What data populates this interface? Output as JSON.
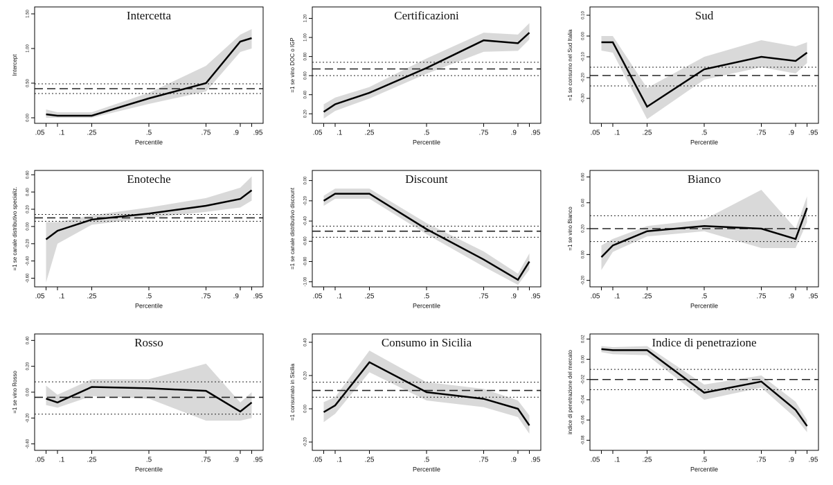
{
  "chart_data": [
    {
      "type": "line",
      "title": "Intercetta",
      "ylabel": "Intercept",
      "xlabel": "Percentile",
      "x": [
        0.05,
        0.1,
        0.25,
        0.5,
        0.75,
        0.9,
        0.95
      ],
      "xlim": [
        0,
        1
      ],
      "xticks": [
        {
          "value": 0.05,
          "label": ".05"
        },
        {
          "value": 0.1,
          "label": ".1"
        },
        {
          "value": 0.25,
          "label": ".25"
        },
        {
          "value": 0.5,
          "label": ".5"
        },
        {
          "value": 0.75,
          "label": ".75"
        },
        {
          "value": 0.9,
          "label": ".9"
        },
        {
          "value": 0.95,
          "label": ".95"
        }
      ],
      "ylim": [
        -0.08,
        1.6
      ],
      "yticks": [
        {
          "value": 0,
          "label": "0.00"
        },
        {
          "value": 0.5,
          "label": "0.50"
        },
        {
          "value": 1,
          "label": "1.00"
        },
        {
          "value": 1.5,
          "label": "1.50"
        }
      ],
      "values": [
        0.05,
        0.03,
        0.03,
        0.28,
        0.5,
        1.1,
        1.15
      ],
      "band_low": [
        0.0,
        0.0,
        0.0,
        0.2,
        0.38,
        0.95,
        1.0
      ],
      "band_high": [
        0.12,
        0.08,
        0.08,
        0.36,
        0.75,
        1.2,
        1.28
      ],
      "ols": 0.42,
      "ols_low": 0.35,
      "ols_high": 0.49
    },
    {
      "type": "line",
      "title": "Certificazioni",
      "ylabel": "=1 se vino DOC o IGP",
      "xlabel": "Percentile",
      "x": [
        0.05,
        0.1,
        0.25,
        0.5,
        0.75,
        0.9,
        0.95
      ],
      "xlim": [
        0,
        1
      ],
      "xticks": [
        {
          "value": 0.05,
          "label": ".05"
        },
        {
          "value": 0.1,
          "label": ".1"
        },
        {
          "value": 0.25,
          "label": ".25"
        },
        {
          "value": 0.5,
          "label": ".5"
        },
        {
          "value": 0.75,
          "label": ".75"
        },
        {
          "value": 0.9,
          "label": ".9"
        },
        {
          "value": 0.95,
          "label": ".95"
        }
      ],
      "ylim": [
        0.1,
        1.32
      ],
      "yticks": [
        {
          "value": 0.2,
          "label": "0.20"
        },
        {
          "value": 0.4,
          "label": "0.40"
        },
        {
          "value": 0.6,
          "label": "0.60"
        },
        {
          "value": 0.8,
          "label": "0.80"
        },
        {
          "value": 1,
          "label": "1.00"
        },
        {
          "value": 1.2,
          "label": "1.20"
        }
      ],
      "values": [
        0.22,
        0.3,
        0.42,
        0.68,
        0.97,
        0.94,
        1.05
      ],
      "band_low": [
        0.15,
        0.23,
        0.36,
        0.62,
        0.85,
        0.86,
        0.98
      ],
      "band_high": [
        0.3,
        0.37,
        0.48,
        0.78,
        1.05,
        1.03,
        1.15
      ],
      "ols": 0.67,
      "ols_low": 0.6,
      "ols_high": 0.74
    },
    {
      "type": "line",
      "title": "Sud",
      "ylabel": "=1 se consumo nel Sud Italia",
      "xlabel": "Percentile",
      "x": [
        0.05,
        0.1,
        0.25,
        0.5,
        0.75,
        0.9,
        0.95
      ],
      "xlim": [
        0,
        1
      ],
      "xticks": [
        {
          "value": 0.05,
          "label": ".05"
        },
        {
          "value": 0.1,
          "label": ".1"
        },
        {
          "value": 0.25,
          "label": ".25"
        },
        {
          "value": 0.5,
          "label": ".5"
        },
        {
          "value": 0.75,
          "label": ".75"
        },
        {
          "value": 0.9,
          "label": ".9"
        },
        {
          "value": 0.95,
          "label": ".95"
        }
      ],
      "ylim": [
        -0.42,
        0.14
      ],
      "yticks": [
        {
          "value": 0.1,
          "label": "0.10"
        },
        {
          "value": 0,
          "label": "0.00"
        },
        {
          "value": -0.1,
          "label": "-0.10"
        },
        {
          "value": -0.2,
          "label": "-0.20"
        },
        {
          "value": -0.3,
          "label": "-0.30"
        }
      ],
      "values": [
        -0.03,
        -0.03,
        -0.34,
        -0.16,
        -0.1,
        -0.12,
        -0.08
      ],
      "band_low": [
        -0.07,
        -0.08,
        -0.4,
        -0.21,
        -0.15,
        -0.18,
        -0.13
      ],
      "band_high": [
        0.0,
        0.0,
        -0.25,
        -0.1,
        -0.02,
        -0.05,
        -0.03
      ],
      "ols": -0.19,
      "ols_low": -0.24,
      "ols_high": -0.15
    },
    {
      "type": "line",
      "title": "Enoteche",
      "ylabel": "=1 se canale distributivo specializ.",
      "xlabel": "Percentile",
      "x": [
        0.05,
        0.1,
        0.25,
        0.5,
        0.75,
        0.9,
        0.95
      ],
      "xlim": [
        0,
        1
      ],
      "xticks": [
        {
          "value": 0.05,
          "label": ".05"
        },
        {
          "value": 0.1,
          "label": ".1"
        },
        {
          "value": 0.25,
          "label": ".25"
        },
        {
          "value": 0.5,
          "label": ".5"
        },
        {
          "value": 0.75,
          "label": ".75"
        },
        {
          "value": 0.9,
          "label": ".9"
        },
        {
          "value": 0.95,
          "label": ".95"
        }
      ],
      "ylim": [
        -0.7,
        0.65
      ],
      "yticks": [
        {
          "value": 0.6,
          "label": "0.60"
        },
        {
          "value": 0.4,
          "label": "0.40"
        },
        {
          "value": 0.2,
          "label": "0.20"
        },
        {
          "value": 0,
          "label": "0.00"
        },
        {
          "value": -0.2,
          "label": "-0.20"
        },
        {
          "value": -0.4,
          "label": "-0.40"
        },
        {
          "value": -0.6,
          "label": "-0.60"
        }
      ],
      "values": [
        -0.15,
        -0.05,
        0.08,
        0.15,
        0.24,
        0.32,
        0.42
      ],
      "band_low": [
        -0.65,
        -0.2,
        0.02,
        0.1,
        0.17,
        0.22,
        0.3
      ],
      "band_high": [
        0.05,
        0.05,
        0.13,
        0.22,
        0.33,
        0.45,
        0.58
      ],
      "ols": 0.1,
      "ols_low": 0.06,
      "ols_high": 0.14
    },
    {
      "type": "line",
      "title": "Discount",
      "ylabel": "=1 se canale distributivo discount",
      "xlabel": "Percentile",
      "x": [
        0.05,
        0.1,
        0.25,
        0.5,
        0.75,
        0.9,
        0.95
      ],
      "xlim": [
        0,
        1
      ],
      "xticks": [
        {
          "value": 0.05,
          "label": ".05"
        },
        {
          "value": 0.1,
          "label": ".1"
        },
        {
          "value": 0.25,
          "label": ".25"
        },
        {
          "value": 0.5,
          "label": ".5"
        },
        {
          "value": 0.75,
          "label": ".75"
        },
        {
          "value": 0.9,
          "label": ".9"
        },
        {
          "value": 0.95,
          "label": ".95"
        }
      ],
      "ylim": [
        -1.05,
        0.1
      ],
      "yticks": [
        {
          "value": 0,
          "label": "0.00"
        },
        {
          "value": -0.2,
          "label": "-0.20"
        },
        {
          "value": -0.4,
          "label": "-0.40"
        },
        {
          "value": -0.6,
          "label": "-0.60"
        },
        {
          "value": -0.8,
          "label": "-0.80"
        },
        {
          "value": -1,
          "label": "-1.00"
        }
      ],
      "values": [
        -0.2,
        -0.13,
        -0.13,
        -0.48,
        -0.78,
        -0.98,
        -0.8
      ],
      "band_low": [
        -0.25,
        -0.18,
        -0.18,
        -0.53,
        -0.85,
        -1.03,
        -0.88
      ],
      "band_high": [
        -0.15,
        -0.08,
        -0.08,
        -0.42,
        -0.7,
        -0.92,
        -0.72
      ],
      "ols": -0.5,
      "ols_low": -0.56,
      "ols_high": -0.45
    },
    {
      "type": "line",
      "title": "Bianco",
      "ylabel": "=1 se vino Bianco",
      "xlabel": "Percentile",
      "x": [
        0.05,
        0.1,
        0.25,
        0.5,
        0.75,
        0.9,
        0.95
      ],
      "xlim": [
        0,
        1
      ],
      "xticks": [
        {
          "value": 0.05,
          "label": ".05"
        },
        {
          "value": 0.1,
          "label": ".1"
        },
        {
          "value": 0.25,
          "label": ".25"
        },
        {
          "value": 0.5,
          "label": ".5"
        },
        {
          "value": 0.75,
          "label": ".75"
        },
        {
          "value": 0.9,
          "label": ".9"
        },
        {
          "value": 0.95,
          "label": ".95"
        }
      ],
      "ylim": [
        -0.25,
        0.65
      ],
      "yticks": [
        {
          "value": 0.6,
          "label": "0.60"
        },
        {
          "value": 0.4,
          "label": "0.40"
        },
        {
          "value": 0.2,
          "label": "0.20"
        },
        {
          "value": 0,
          "label": "0.00"
        },
        {
          "value": -0.2,
          "label": "-0.20"
        }
      ],
      "values": [
        -0.02,
        0.07,
        0.18,
        0.22,
        0.2,
        0.12,
        0.36
      ],
      "band_low": [
        -0.12,
        0.02,
        0.14,
        0.18,
        0.05,
        0.05,
        0.25
      ],
      "band_high": [
        0.07,
        0.12,
        0.22,
        0.27,
        0.5,
        0.2,
        0.45
      ],
      "ols": 0.2,
      "ols_low": 0.1,
      "ols_high": 0.3
    },
    {
      "type": "line",
      "title": "Rosso",
      "ylabel": "=1 se vino Rosso",
      "xlabel": "Percentile",
      "x": [
        0.05,
        0.1,
        0.25,
        0.5,
        0.75,
        0.9,
        0.95
      ],
      "xlim": [
        0,
        1
      ],
      "xticks": [
        {
          "value": 0.05,
          "label": ".05"
        },
        {
          "value": 0.1,
          "label": ".1"
        },
        {
          "value": 0.25,
          "label": ".25"
        },
        {
          "value": 0.5,
          "label": ".5"
        },
        {
          "value": 0.75,
          "label": ".75"
        },
        {
          "value": 0.9,
          "label": ".9"
        },
        {
          "value": 0.95,
          "label": ".95"
        }
      ],
      "ylim": [
        -0.45,
        0.45
      ],
      "yticks": [
        {
          "value": 0.4,
          "label": "0.40"
        },
        {
          "value": 0.2,
          "label": "0.20"
        },
        {
          "value": 0,
          "label": "0.00"
        },
        {
          "value": -0.2,
          "label": "-0.20"
        },
        {
          "value": -0.4,
          "label": "-0.40"
        }
      ],
      "values": [
        -0.05,
        -0.08,
        0.04,
        0.03,
        0.01,
        -0.15,
        -0.08
      ],
      "band_low": [
        -0.1,
        -0.12,
        -0.03,
        -0.05,
        -0.22,
        -0.22,
        -0.2
      ],
      "band_high": [
        0.05,
        -0.02,
        0.1,
        0.1,
        0.22,
        -0.08,
        0.0
      ],
      "ols": -0.04,
      "ols_low": -0.17,
      "ols_high": 0.08
    },
    {
      "type": "line",
      "title": "Consumo in Sicilia",
      "ylabel": "=1 consumato in Sicilia",
      "xlabel": "Percentile",
      "x": [
        0.05,
        0.1,
        0.25,
        0.5,
        0.75,
        0.9,
        0.95
      ],
      "xlim": [
        0,
        1
      ],
      "xticks": [
        {
          "value": 0.05,
          "label": ".05"
        },
        {
          "value": 0.1,
          "label": ".1"
        },
        {
          "value": 0.25,
          "label": ".25"
        },
        {
          "value": 0.5,
          "label": ".5"
        },
        {
          "value": 0.75,
          "label": ".75"
        },
        {
          "value": 0.9,
          "label": ".9"
        },
        {
          "value": 0.95,
          "label": ".95"
        }
      ],
      "ylim": [
        -0.25,
        0.45
      ],
      "yticks": [
        {
          "value": 0.4,
          "label": "0.40"
        },
        {
          "value": 0.2,
          "label": "0.20"
        },
        {
          "value": 0,
          "label": "0.00"
        },
        {
          "value": -0.2,
          "label": "-0.20"
        }
      ],
      "values": [
        -0.02,
        0.02,
        0.28,
        0.1,
        0.06,
        0.0,
        -0.1
      ],
      "band_low": [
        -0.08,
        -0.03,
        0.22,
        0.05,
        0.01,
        -0.05,
        -0.15
      ],
      "band_high": [
        0.04,
        0.07,
        0.35,
        0.16,
        0.12,
        0.05,
        -0.04
      ],
      "ols": 0.11,
      "ols_low": 0.07,
      "ols_high": 0.16
    },
    {
      "type": "line",
      "title": "Indice di penetrazione",
      "ylabel": "indice di penetrazione del mercato",
      "xlabel": "Percentile",
      "x": [
        0.05,
        0.1,
        0.25,
        0.5,
        0.75,
        0.9,
        0.95
      ],
      "xlim": [
        0,
        1
      ],
      "xticks": [
        {
          "value": 0.05,
          "label": ".05"
        },
        {
          "value": 0.1,
          "label": ".1"
        },
        {
          "value": 0.25,
          "label": ".25"
        },
        {
          "value": 0.5,
          "label": ".5"
        },
        {
          "value": 0.75,
          "label": ".75"
        },
        {
          "value": 0.9,
          "label": ".9"
        },
        {
          "value": 0.95,
          "label": ".95"
        }
      ],
      "ylim": [
        -0.09,
        0.025
      ],
      "yticks": [
        {
          "value": 0.02,
          "label": "0.02"
        },
        {
          "value": 0,
          "label": "0.00"
        },
        {
          "value": -0.02,
          "label": "-0.02"
        },
        {
          "value": -0.04,
          "label": "-0.04"
        },
        {
          "value": -0.06,
          "label": "-0.06"
        },
        {
          "value": -0.08,
          "label": "-0.08"
        }
      ],
      "values": [
        0.01,
        0.009,
        0.009,
        -0.033,
        -0.022,
        -0.05,
        -0.066
      ],
      "band_low": [
        0.007,
        0.005,
        0.004,
        -0.04,
        -0.028,
        -0.058,
        -0.072
      ],
      "band_high": [
        0.013,
        0.012,
        0.013,
        -0.025,
        -0.016,
        -0.042,
        -0.06
      ],
      "ols": -0.02,
      "ols_low": -0.03,
      "ols_high": -0.01
    }
  ]
}
